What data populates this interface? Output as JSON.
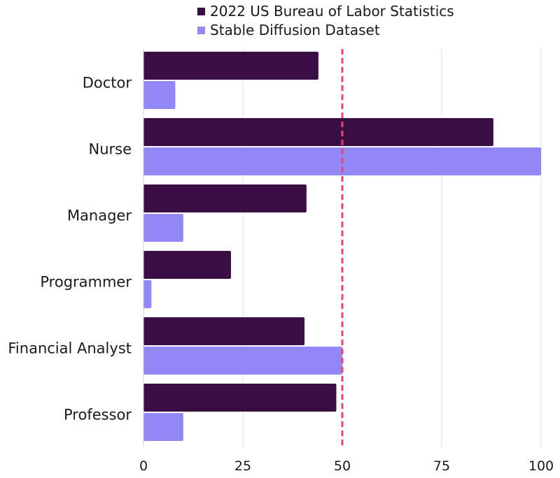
{
  "chart_data": {
    "type": "bar",
    "orientation": "horizontal",
    "categories": [
      "Doctor",
      "Nurse",
      "Manager",
      "Programmer",
      "Financial Analyst",
      "Professor"
    ],
    "series": [
      {
        "name": "2022 US Bureau of Labor Statistics",
        "color": "#3a0d45",
        "values": [
          44,
          88,
          41,
          22,
          40.5,
          48.5
        ]
      },
      {
        "name": "Stable Diffusion Dataset",
        "color": "#9387f5",
        "values": [
          8,
          100,
          10,
          2,
          50,
          10
        ]
      }
    ],
    "xlim": [
      0,
      100
    ],
    "xticks": [
      "0",
      "25",
      "50",
      "75",
      "100"
    ],
    "xtick_values": [
      0,
      25,
      50,
      75,
      100
    ],
    "grid": true,
    "reference_line": {
      "value": 50,
      "color": "#e0457b",
      "style": "dashed"
    },
    "legend_position": "top-center"
  }
}
